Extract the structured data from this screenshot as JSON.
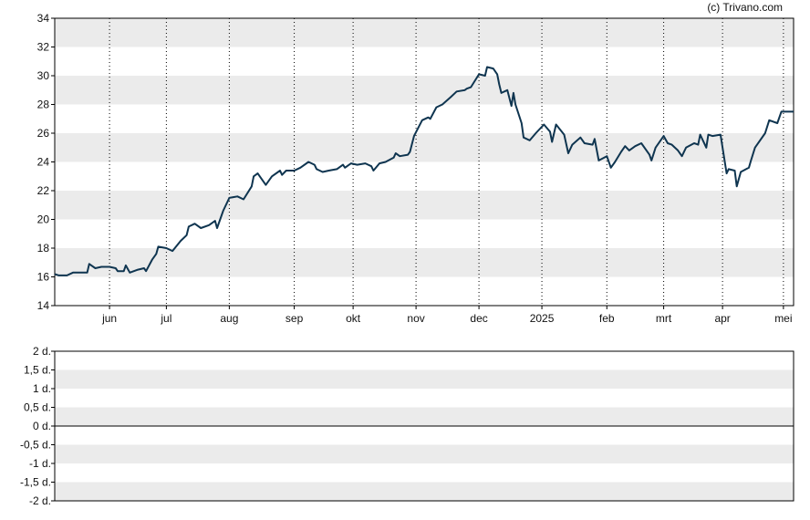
{
  "copyright": "(c) Trivano.com",
  "colors": {
    "line": "#0f3550",
    "band": "#ebebeb",
    "axis": "#000000",
    "grid": "#000000"
  },
  "chart_data": [
    {
      "type": "line",
      "title": "",
      "xlabel": "",
      "ylabel": "",
      "ylim": [
        14,
        34
      ],
      "yticks": [
        14,
        16,
        18,
        20,
        22,
        24,
        26,
        28,
        30,
        32,
        34
      ],
      "ytick_labels": [
        "14",
        "16",
        "18",
        "20",
        "22",
        "24",
        "26",
        "28",
        "30",
        "32",
        "34"
      ],
      "xlim": [
        "2024-05-07",
        "2025-05-06"
      ],
      "xticks": [
        {
          "label": "jun",
          "date": "2024-06-03"
        },
        {
          "label": "jul",
          "date": "2024-07-01"
        },
        {
          "label": "aug",
          "date": "2024-08-01"
        },
        {
          "label": "sep",
          "date": "2024-09-02"
        },
        {
          "label": "okt",
          "date": "2024-10-01"
        },
        {
          "label": "nov",
          "date": "2024-11-01"
        },
        {
          "label": "dec",
          "date": "2024-12-02"
        },
        {
          "label": "2025",
          "date": "2025-01-02"
        },
        {
          "label": "feb",
          "date": "2025-02-03"
        },
        {
          "label": "mrt",
          "date": "2025-03-03"
        },
        {
          "label": "apr",
          "date": "2025-04-01"
        },
        {
          "label": "mei",
          "date": "2025-05-01"
        }
      ],
      "grid": "vertical dotted at month ticks, alternating horizontal bands",
      "series": [
        {
          "color": "#0f3550",
          "points": [
            [
              "2024-05-07",
              16.2
            ],
            [
              "2024-05-09",
              16.1
            ],
            [
              "2024-05-13",
              16.1
            ],
            [
              "2024-05-16",
              16.3
            ],
            [
              "2024-05-20",
              16.3
            ],
            [
              "2024-05-23",
              16.3
            ],
            [
              "2024-05-24",
              16.9
            ],
            [
              "2024-05-27",
              16.6
            ],
            [
              "2024-05-30",
              16.7
            ],
            [
              "2024-06-03",
              16.7
            ],
            [
              "2024-06-06",
              16.6
            ],
            [
              "2024-06-07",
              16.4
            ],
            [
              "2024-06-10",
              16.4
            ],
            [
              "2024-06-11",
              16.8
            ],
            [
              "2024-06-13",
              16.3
            ],
            [
              "2024-06-17",
              16.5
            ],
            [
              "2024-06-20",
              16.6
            ],
            [
              "2024-06-21",
              16.4
            ],
            [
              "2024-06-24",
              17.2
            ],
            [
              "2024-06-26",
              17.6
            ],
            [
              "2024-06-27",
              18.1
            ],
            [
              "2024-07-01",
              18.0
            ],
            [
              "2024-07-04",
              17.8
            ],
            [
              "2024-07-08",
              18.5
            ],
            [
              "2024-07-11",
              18.9
            ],
            [
              "2024-07-12",
              19.5
            ],
            [
              "2024-07-15",
              19.7
            ],
            [
              "2024-07-18",
              19.4
            ],
            [
              "2024-07-22",
              19.6
            ],
            [
              "2024-07-25",
              19.9
            ],
            [
              "2024-07-26",
              19.4
            ],
            [
              "2024-07-29",
              20.6
            ],
            [
              "2024-08-01",
              21.5
            ],
            [
              "2024-08-05",
              21.6
            ],
            [
              "2024-08-08",
              21.4
            ],
            [
              "2024-08-12",
              22.3
            ],
            [
              "2024-08-13",
              23.0
            ],
            [
              "2024-08-15",
              23.2
            ],
            [
              "2024-08-19",
              22.4
            ],
            [
              "2024-08-22",
              23.0
            ],
            [
              "2024-08-26",
              23.4
            ],
            [
              "2024-08-27",
              23.1
            ],
            [
              "2024-08-29",
              23.4
            ],
            [
              "2024-09-02",
              23.4
            ],
            [
              "2024-09-05",
              23.6
            ],
            [
              "2024-09-09",
              24.0
            ],
            [
              "2024-09-12",
              23.8
            ],
            [
              "2024-09-13",
              23.5
            ],
            [
              "2024-09-16",
              23.3
            ],
            [
              "2024-09-19",
              23.4
            ],
            [
              "2024-09-23",
              23.5
            ],
            [
              "2024-09-26",
              23.8
            ],
            [
              "2024-09-27",
              23.6
            ],
            [
              "2024-09-30",
              23.9
            ],
            [
              "2024-10-03",
              23.8
            ],
            [
              "2024-10-07",
              23.9
            ],
            [
              "2024-10-10",
              23.7
            ],
            [
              "2024-10-11",
              23.4
            ],
            [
              "2024-10-14",
              23.9
            ],
            [
              "2024-10-17",
              24.0
            ],
            [
              "2024-10-21",
              24.3
            ],
            [
              "2024-10-22",
              24.6
            ],
            [
              "2024-10-24",
              24.4
            ],
            [
              "2024-10-28",
              24.5
            ],
            [
              "2024-10-29",
              24.7
            ],
            [
              "2024-10-31",
              25.8
            ],
            [
              "2024-11-04",
              26.9
            ],
            [
              "2024-11-07",
              27.1
            ],
            [
              "2024-11-08",
              27.0
            ],
            [
              "2024-11-11",
              27.8
            ],
            [
              "2024-11-14",
              28.0
            ],
            [
              "2024-11-18",
              28.5
            ],
            [
              "2024-11-21",
              28.9
            ],
            [
              "2024-11-25",
              29.0
            ],
            [
              "2024-11-26",
              29.1
            ],
            [
              "2024-11-28",
              29.2
            ],
            [
              "2024-12-02",
              30.1
            ],
            [
              "2024-12-05",
              30.0
            ],
            [
              "2024-12-06",
              30.6
            ],
            [
              "2024-12-09",
              30.5
            ],
            [
              "2024-12-11",
              30.1
            ],
            [
              "2024-12-12",
              29.4
            ],
            [
              "2024-12-13",
              28.8
            ],
            [
              "2024-12-16",
              29.0
            ],
            [
              "2024-12-18",
              27.9
            ],
            [
              "2024-12-19",
              28.8
            ],
            [
              "2024-12-20",
              28.0
            ],
            [
              "2024-12-23",
              26.7
            ],
            [
              "2024-12-24",
              25.7
            ],
            [
              "2024-12-27",
              25.5
            ],
            [
              "2024-12-30",
              26.0
            ],
            [
              "2025-01-03",
              26.6
            ],
            [
              "2025-01-06",
              26.1
            ],
            [
              "2025-01-07",
              25.4
            ],
            [
              "2025-01-09",
              26.6
            ],
            [
              "2025-01-13",
              25.9
            ],
            [
              "2025-01-15",
              24.6
            ],
            [
              "2025-01-17",
              25.2
            ],
            [
              "2025-01-21",
              25.7
            ],
            [
              "2025-01-23",
              25.3
            ],
            [
              "2025-01-27",
              25.2
            ],
            [
              "2025-01-28",
              25.6
            ],
            [
              "2025-01-30",
              24.1
            ],
            [
              "2025-02-03",
              24.4
            ],
            [
              "2025-02-05",
              23.6
            ],
            [
              "2025-02-07",
              24.0
            ],
            [
              "2025-02-10",
              24.7
            ],
            [
              "2025-02-12",
              25.1
            ],
            [
              "2025-02-14",
              24.8
            ],
            [
              "2025-02-17",
              25.1
            ],
            [
              "2025-02-20",
              25.3
            ],
            [
              "2025-02-24",
              24.5
            ],
            [
              "2025-02-25",
              24.1
            ],
            [
              "2025-02-27",
              25.0
            ],
            [
              "2025-03-03",
              25.8
            ],
            [
              "2025-03-05",
              25.3
            ],
            [
              "2025-03-07",
              25.2
            ],
            [
              "2025-03-10",
              24.8
            ],
            [
              "2025-03-12",
              24.4
            ],
            [
              "2025-03-14",
              25.0
            ],
            [
              "2025-03-18",
              25.3
            ],
            [
              "2025-03-20",
              25.2
            ],
            [
              "2025-03-21",
              25.9
            ],
            [
              "2025-03-24",
              25.0
            ],
            [
              "2025-03-25",
              25.9
            ],
            [
              "2025-03-27",
              25.8
            ],
            [
              "2025-03-31",
              25.9
            ],
            [
              "2025-04-03",
              23.2
            ],
            [
              "2025-04-04",
              23.5
            ],
            [
              "2025-04-07",
              23.4
            ],
            [
              "2025-04-08",
              22.3
            ],
            [
              "2025-04-10",
              23.3
            ],
            [
              "2025-04-14",
              23.6
            ],
            [
              "2025-04-15",
              24.1
            ],
            [
              "2025-04-17",
              25.0
            ],
            [
              "2025-04-22",
              26.0
            ],
            [
              "2025-04-24",
              26.9
            ],
            [
              "2025-04-28",
              26.7
            ],
            [
              "2025-04-30",
              27.5
            ],
            [
              "2025-05-06",
              27.5
            ]
          ]
        }
      ]
    },
    {
      "type": "line",
      "title": "",
      "xlabel": "",
      "ylabel": "",
      "ylim": [
        -2,
        2
      ],
      "yticks": [
        -2,
        -1.5,
        -1,
        -0.5,
        0,
        0.5,
        1,
        1.5,
        2
      ],
      "ytick_labels": [
        "-2 d.",
        "-1,5 d.",
        "-1 d.",
        "-0,5 d.",
        "0 d.",
        "0,5 d.",
        "1 d.",
        "1,5 d.",
        "2 d."
      ],
      "zero_line": 0,
      "series": []
    }
  ]
}
